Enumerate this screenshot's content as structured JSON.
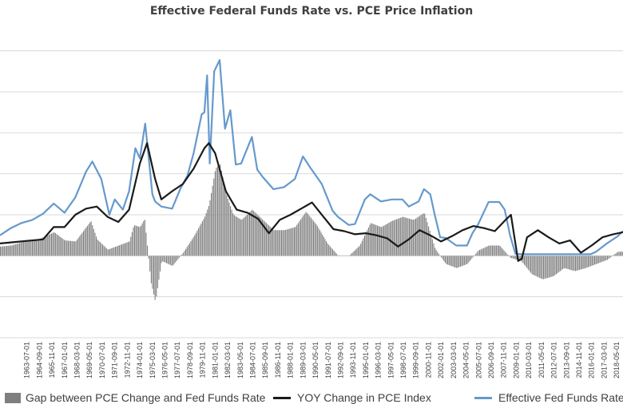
{
  "chart_data": {
    "type": "line",
    "title": "Effective Federal Funds Rate vs. PCE Price Inflation",
    "xlabel": "",
    "ylabel": "",
    "ylim": [
      -8,
      22
    ],
    "y_tick_step": 4,
    "x_range": [
      "1961-01-01",
      "2018-12-01"
    ],
    "grid": true,
    "legend_position": "bottom",
    "x_tick_labels": [
      "1963-07-01",
      "1964-09-01",
      "1965-11-01",
      "1967-01-01",
      "1968-03-01",
      "1969-05-01",
      "1970-07-01",
      "1971-09-01",
      "1972-11-01",
      "1974-01-01",
      "1975-03-01",
      "1976-05-01",
      "1977-07-01",
      "1978-09-01",
      "1979-11-01",
      "1981-01-01",
      "1982-03-01",
      "1983-05-01",
      "1984-07-01",
      "1985-09-01",
      "1986-11-01",
      "1988-01-01",
      "1989-03-01",
      "1990-05-01",
      "1991-07-01",
      "1992-09-01",
      "1993-11-01",
      "1995-01-01",
      "1996-03-01",
      "1997-05-01",
      "1998-07-01",
      "1999-09-01",
      "2000-11-01",
      "2002-01-01",
      "2003-03-01",
      "2004-05-01",
      "2005-07-01",
      "2006-09-01",
      "2007-11-01",
      "2009-01-01",
      "2010-03-01",
      "2011-05-01",
      "2012-07-01",
      "2013-09-01",
      "2014-11-01",
      "2016-01-01",
      "2017-03-01",
      "2018-05-01"
    ],
    "series": [
      {
        "name": "Gap between PCE Change and Fed Funds Rate",
        "kind": "bar",
        "color": "#7f7f7f",
        "x": [
          "1961-01",
          "1962-01",
          "1963-01",
          "1964-01",
          "1965-01",
          "1966-01",
          "1967-01",
          "1968-01",
          "1969-01",
          "1969-06",
          "1970-01",
          "1971-01",
          "1972-01",
          "1973-01",
          "1973-06",
          "1974-01",
          "1974-06",
          "1975-01",
          "1975-06",
          "1976-01",
          "1977-01",
          "1978-01",
          "1979-01",
          "1980-01",
          "1980-06",
          "1981-01",
          "1981-06",
          "1982-01",
          "1982-09",
          "1983-06",
          "1984-06",
          "1985-06",
          "1986-06",
          "1987-06",
          "1988-06",
          "1989-06",
          "1990-06",
          "1991-06",
          "1992-06",
          "1993-06",
          "1994-06",
          "1995-06",
          "1996-06",
          "1997-06",
          "1998-06",
          "1999-06",
          "2000-06",
          "2001-06",
          "2002-06",
          "2003-06",
          "2004-06",
          "2005-06",
          "2006-06",
          "2007-06",
          "2008-06",
          "2009-06",
          "2010-06",
          "2011-06",
          "2012-06",
          "2013-06",
          "2014-06",
          "2015-06",
          "2016-06",
          "2017-06",
          "2018-06"
        ],
        "values": [
          0.9,
          1.0,
          1.3,
          1.4,
          1.8,
          2.3,
          1.5,
          1.4,
          2.8,
          3.4,
          1.6,
          0.6,
          1.0,
          1.4,
          3.0,
          2.8,
          3.6,
          -2.6,
          -4.5,
          -0.5,
          -1.0,
          0.3,
          1.9,
          3.8,
          5.0,
          8.5,
          9.0,
          6.0,
          4.0,
          3.5,
          4.5,
          3.5,
          2.5,
          2.5,
          2.8,
          4.3,
          3.0,
          1.2,
          0.0,
          0.0,
          1.0,
          3.2,
          2.8,
          3.4,
          3.8,
          3.5,
          4.2,
          0.7,
          -0.8,
          -1.2,
          -0.8,
          0.5,
          1.0,
          1.0,
          -0.2,
          -0.5,
          -1.8,
          -2.3,
          -2.0,
          -1.2,
          -1.5,
          -1.2,
          -0.8,
          -0.4,
          0.4
        ]
      },
      {
        "name": "YOY Change in PCE Index",
        "kind": "line",
        "color": "#1a1a1a",
        "x": [
          "1961-01",
          "1962-01",
          "1963-01",
          "1964-01",
          "1965-01",
          "1966-01",
          "1967-01",
          "1968-01",
          "1969-01",
          "1970-01",
          "1971-01",
          "1972-01",
          "1973-01",
          "1974-01",
          "1974-09",
          "1975-06",
          "1976-01",
          "1977-01",
          "1978-01",
          "1979-01",
          "1980-01",
          "1980-06",
          "1981-01",
          "1982-01",
          "1983-01",
          "1984-01",
          "1985-01",
          "1986-01",
          "1987-01",
          "1988-01",
          "1989-01",
          "1990-01",
          "1991-01",
          "1992-01",
          "1993-01",
          "1994-01",
          "1995-01",
          "1996-01",
          "1997-01",
          "1998-01",
          "1999-01",
          "2000-01",
          "2001-01",
          "2002-01",
          "2003-01",
          "2004-01",
          "2005-01",
          "2006-01",
          "2007-01",
          "2008-01",
          "2008-07",
          "2009-03",
          "2009-07",
          "2010-01",
          "2011-01",
          "2012-01",
          "2013-01",
          "2014-01",
          "2015-01",
          "2016-01",
          "2017-01",
          "2018-01",
          "2018-12"
        ],
        "values": [
          1.2,
          1.3,
          1.4,
          1.5,
          1.6,
          2.8,
          2.8,
          4.0,
          4.6,
          4.8,
          3.8,
          3.3,
          4.5,
          9.0,
          11.0,
          7.5,
          5.5,
          6.3,
          7.0,
          8.5,
          10.5,
          11.0,
          10.0,
          6.3,
          4.5,
          4.2,
          3.6,
          2.2,
          3.5,
          4.0,
          4.6,
          5.2,
          3.9,
          2.6,
          2.4,
          2.1,
          2.2,
          2.0,
          1.7,
          0.9,
          1.6,
          2.5,
          2.0,
          1.4,
          1.9,
          2.5,
          2.9,
          2.7,
          2.4,
          3.5,
          4.0,
          -0.5,
          -0.3,
          1.8,
          2.5,
          1.8,
          1.2,
          1.5,
          0.3,
          1.0,
          1.8,
          2.1,
          2.3
        ]
      },
      {
        "name": "Effective Fed Funds Rate",
        "kind": "line",
        "color": "#6699cc",
        "x": [
          "1961-01",
          "1962-01",
          "1963-01",
          "1964-01",
          "1965-01",
          "1966-01",
          "1967-01",
          "1968-01",
          "1969-01",
          "1969-08",
          "1970-06",
          "1971-03",
          "1971-09",
          "1972-06",
          "1973-01",
          "1973-08",
          "1974-01",
          "1974-07",
          "1975-03",
          "1975-06",
          "1976-01",
          "1977-01",
          "1977-10",
          "1978-06",
          "1979-01",
          "1979-10",
          "1980-01",
          "1980-04",
          "1980-07",
          "1980-12",
          "1981-06",
          "1981-12",
          "1982-06",
          "1982-12",
          "1983-06",
          "1984-06",
          "1984-12",
          "1985-06",
          "1986-06",
          "1987-06",
          "1988-06",
          "1989-03",
          "1989-12",
          "1990-12",
          "1991-12",
          "1992-06",
          "1993-06",
          "1994-01",
          "1994-12",
          "1995-06",
          "1996-06",
          "1997-06",
          "1998-06",
          "1999-01",
          "1999-12",
          "2000-06",
          "2001-01",
          "2001-06",
          "2001-12",
          "2002-06",
          "2003-06",
          "2004-06",
          "2004-12",
          "2005-06",
          "2006-06",
          "2007-06",
          "2007-12",
          "2008-06",
          "2008-12",
          "2009-06",
          "2012-06",
          "2015-12",
          "2016-06",
          "2017-06",
          "2018-06",
          "2018-12"
        ],
        "values": [
          2.0,
          2.7,
          3.2,
          3.5,
          4.1,
          5.1,
          4.2,
          5.7,
          8.2,
          9.2,
          7.5,
          4.0,
          5.5,
          4.5,
          6.3,
          10.5,
          9.5,
          12.9,
          6.0,
          5.3,
          4.8,
          4.6,
          6.5,
          7.8,
          10.0,
          13.8,
          14.0,
          17.6,
          9.0,
          18.0,
          19.1,
          12.4,
          14.2,
          8.9,
          9.0,
          11.6,
          8.4,
          7.7,
          6.5,
          6.7,
          7.5,
          9.7,
          8.5,
          7.0,
          4.4,
          3.8,
          3.0,
          3.1,
          5.5,
          6.0,
          5.3,
          5.5,
          5.5,
          4.8,
          5.3,
          6.5,
          6.0,
          4.0,
          1.8,
          1.75,
          1.0,
          1.0,
          2.2,
          3.0,
          5.25,
          5.25,
          4.5,
          2.0,
          0.2,
          0.15,
          0.15,
          0.15,
          0.4,
          1.2,
          1.9,
          2.4
        ]
      }
    ]
  },
  "legend": {
    "bars_label": "Gap between PCE Change and Fed Funds Rate",
    "pce_label": "YOY Change in PCE Index",
    "ffr_label": "Effective Fed Funds Rate"
  }
}
